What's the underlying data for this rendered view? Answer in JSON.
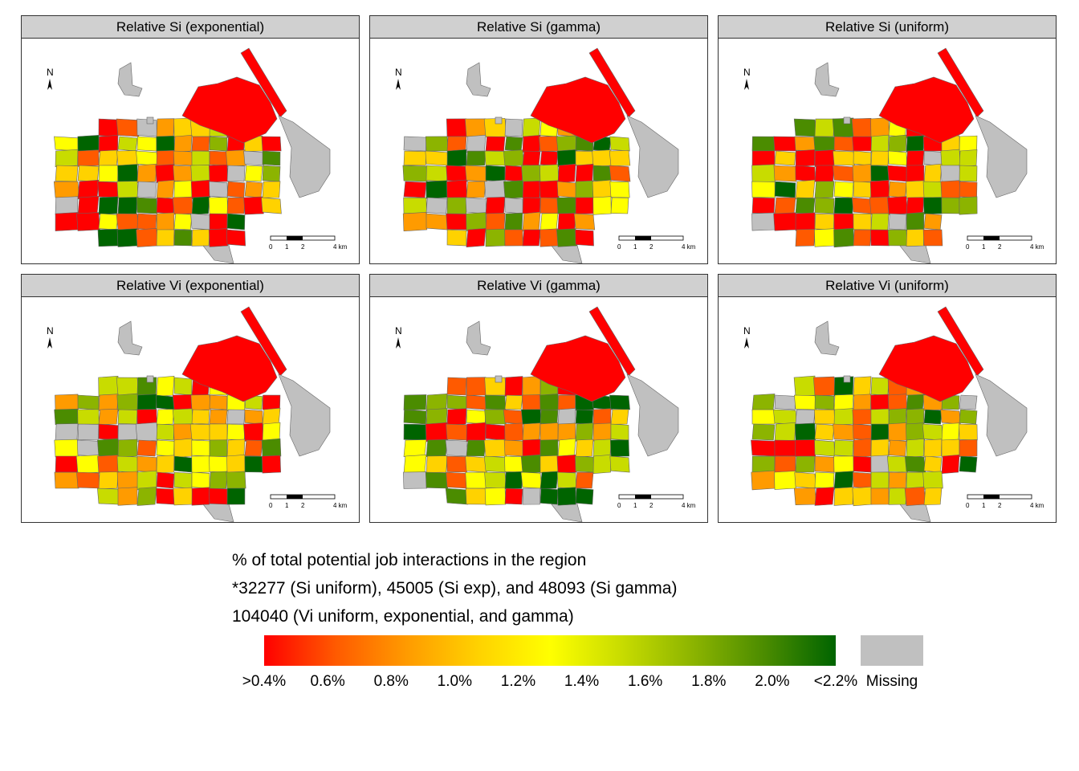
{
  "panels": [
    {
      "title": "Relative Si (exponential)",
      "seed": 11
    },
    {
      "title": "Relative Si (gamma)",
      "seed": 23
    },
    {
      "title": "Relative Si (uniform)",
      "seed": 37
    },
    {
      "title": "Relative Vi (exponential)",
      "seed": 51
    },
    {
      "title": "Relative Vi (gamma)",
      "seed": 67
    },
    {
      "title": "Relative Vi (uniform)",
      "seed": 83
    }
  ],
  "north_label": "N",
  "scale_bar": {
    "labels": [
      "0",
      "1",
      "2",
      "4"
    ],
    "unit": "km"
  },
  "legend": {
    "title": "% of total potential job interactions in the region",
    "note_1": "*32277 (Si uniform), 45005 (Si exp), and 48093 (Si gamma)",
    "note_2": "104040 (Vi uniform, exponential, and gamma)",
    "ticks": [
      ">0.4%",
      "0.6%",
      "0.8%",
      "1.0%",
      "1.2%",
      "1.4%",
      "1.6%",
      "1.8%",
      "2.0%",
      "<2.2%"
    ],
    "missing_label": "Missing",
    "colors": [
      "#ff0000",
      "#ff5a00",
      "#ff9b00",
      "#ffd200",
      "#ffff00",
      "#c8dc00",
      "#8cb400",
      "#4b8c00",
      "#006400"
    ],
    "missing_color": "#c0c0c0"
  }
}
